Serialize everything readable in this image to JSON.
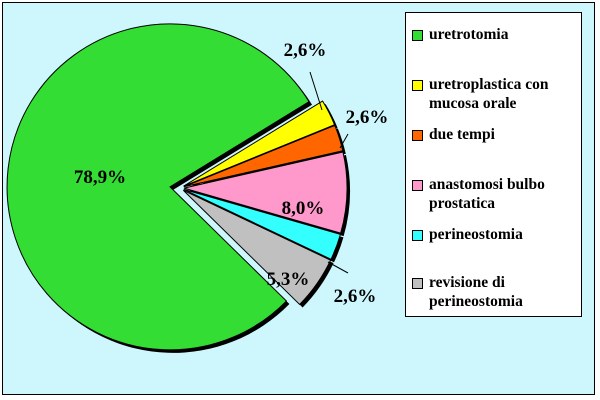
{
  "chart_data": {
    "type": "pie",
    "slices": [
      {
        "label": "uretrotomia",
        "value": 78.9,
        "display": "78,9%",
        "color": "#33dd33"
      },
      {
        "label": "uretroplastica con mucosa orale",
        "value": 2.6,
        "display": "2,6%",
        "color": "#ffff00"
      },
      {
        "label": "due tempi",
        "value": 2.6,
        "display": "2,6%",
        "color": "#ff6600"
      },
      {
        "label": "anastomosi bulbo prostatica",
        "value": 8.0,
        "display": "8,0%",
        "color": "#ff99cc"
      },
      {
        "label": "perineostomia",
        "value": 2.6,
        "display": "2,6%",
        "color": "#33ffff"
      },
      {
        "label": "revisione di perineostomia",
        "value": 5.3,
        "display": "5,3%",
        "color": "#c0c0c0"
      }
    ],
    "legend_position": "right"
  }
}
